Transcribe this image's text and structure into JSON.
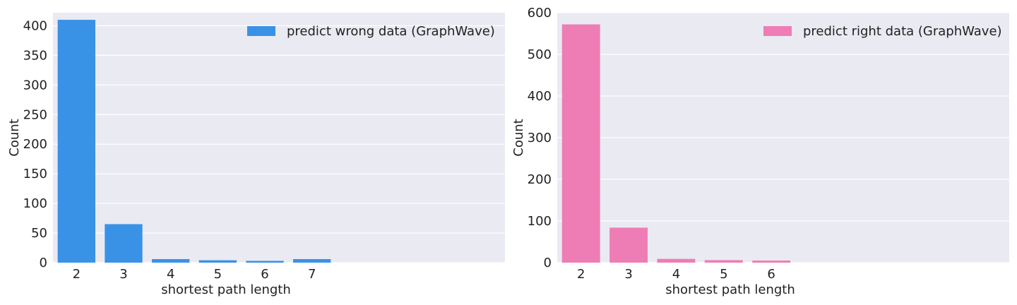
{
  "chart_data": [
    {
      "type": "bar",
      "categories": [
        "2",
        "3",
        "4",
        "5",
        "6",
        "7"
      ],
      "values": [
        410,
        65,
        6,
        4,
        3,
        6
      ],
      "xlabel": "shortest path length",
      "ylabel": "Count",
      "ylim": [
        0,
        422
      ],
      "yticks": [
        0,
        50,
        100,
        150,
        200,
        250,
        300,
        350,
        400
      ],
      "series": [
        {
          "name": "predict wrong data (GraphWave)",
          "values": [
            410,
            65,
            6,
            4,
            3,
            6
          ]
        }
      ],
      "color": "#3a92e6",
      "legend": "top-right",
      "grid": true,
      "background": "#eaeaf2"
    },
    {
      "type": "bar",
      "categories": [
        "2",
        "3",
        "4",
        "5",
        "6"
      ],
      "values": [
        572,
        84,
        9,
        6,
        5
      ],
      "xlabel": "shortest path length",
      "ylabel": "Count",
      "ylim": [
        0,
        600
      ],
      "yticks": [
        0,
        100,
        200,
        300,
        400,
        500,
        600
      ],
      "series": [
        {
          "name": "predict right data (GraphWave)",
          "values": [
            572,
            84,
            9,
            6,
            5
          ]
        }
      ],
      "color": "#ee7db5",
      "legend": "top-right",
      "grid": true,
      "background": "#eaeaf2"
    }
  ]
}
